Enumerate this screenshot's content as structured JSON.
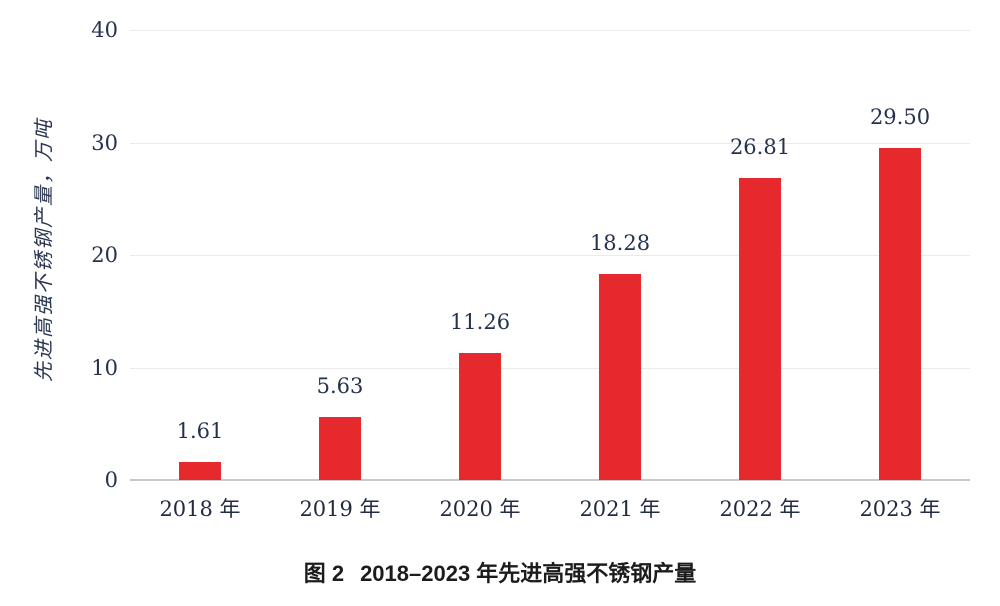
{
  "chart_data": {
    "type": "bar",
    "categories": [
      "2018 年",
      "2019 年",
      "2020 年",
      "2021 年",
      "2022 年",
      "2023 年"
    ],
    "values": [
      1.61,
      5.63,
      11.26,
      18.28,
      26.81,
      29.5
    ],
    "value_labels": [
      "1.61",
      "5.63",
      "11.26",
      "18.28",
      "26.81",
      "29.50"
    ],
    "title": "图 2　2018–2023 年先进高强不锈钢产量",
    "xlabel": "",
    "ylabel": "先进高强不锈钢产量，万吨",
    "yticks": [
      0,
      10,
      20,
      30,
      40
    ],
    "ylim": [
      0,
      40
    ],
    "grid": true,
    "legend_position": "none",
    "colors": {
      "bar": "#e5292c",
      "gridline": "#ebebeb",
      "axis_line": "#c7c7c7",
      "numbers": "#25324f",
      "x_labels": "#232b40",
      "ylabel_text": "#2a3550",
      "caption_text": "#1c1c1e"
    }
  },
  "caption": {
    "figure_label": "图 2",
    "figure_title": "2018–2023 年先进高强不锈钢产量"
  }
}
